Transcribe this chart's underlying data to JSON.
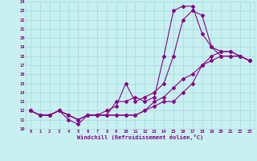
{
  "xlabel": "Windchill (Refroidissement éolien,°C)",
  "bg_color": "#c8f0f0",
  "line_color": "#880088",
  "grid_color": "#aadddd",
  "xmin": 0,
  "xmax": 23,
  "ymin": 10,
  "ymax": 24,
  "series": [
    {
      "x": [
        0,
        1,
        2,
        3,
        4,
        5,
        6,
        7,
        8,
        9,
        10,
        11,
        12,
        13,
        14,
        15,
        16,
        17,
        18,
        19,
        20,
        21,
        22,
        23
      ],
      "y": [
        12,
        11.5,
        11.5,
        12,
        11,
        10.5,
        11.5,
        11.5,
        11.5,
        13,
        13,
        13.5,
        13,
        13.5,
        18,
        23,
        23.5,
        23.5,
        20.5,
        19,
        18,
        18,
        18,
        17.5
      ]
    },
    {
      "x": [
        0,
        1,
        2,
        3,
        4,
        5,
        6,
        7,
        8,
        9,
        10,
        11,
        12,
        13,
        14,
        15,
        16,
        17,
        18,
        19,
        20,
        21,
        22,
        23
      ],
      "y": [
        12,
        11.5,
        11.5,
        12,
        11.5,
        11,
        11.5,
        11.5,
        12,
        12.5,
        15,
        13,
        13.5,
        14,
        15,
        18,
        22,
        23,
        22.5,
        19,
        18.5,
        18.5,
        18,
        17.5
      ]
    },
    {
      "x": [
        0,
        1,
        2,
        3,
        4,
        5,
        6,
        7,
        8,
        9,
        10,
        11,
        12,
        13,
        14,
        15,
        16,
        17,
        18,
        19,
        20,
        21,
        22,
        23
      ],
      "y": [
        12,
        11.5,
        11.5,
        12,
        11.5,
        11,
        11.5,
        11.5,
        11.5,
        11.5,
        11.5,
        11.5,
        12,
        12.5,
        13,
        13,
        14,
        15,
        17,
        17.5,
        18,
        18,
        18,
        17.5
      ]
    },
    {
      "x": [
        0,
        1,
        2,
        3,
        4,
        5,
        6,
        7,
        8,
        9,
        10,
        11,
        12,
        13,
        14,
        15,
        16,
        17,
        18,
        19,
        20,
        21,
        22,
        23
      ],
      "y": [
        12,
        11.5,
        11.5,
        12,
        11.5,
        11,
        11.5,
        11.5,
        11.5,
        11.5,
        11.5,
        11.5,
        12,
        13,
        13.5,
        14.5,
        15.5,
        16,
        17,
        18,
        18.5,
        18.5,
        18,
        17.5
      ]
    }
  ]
}
